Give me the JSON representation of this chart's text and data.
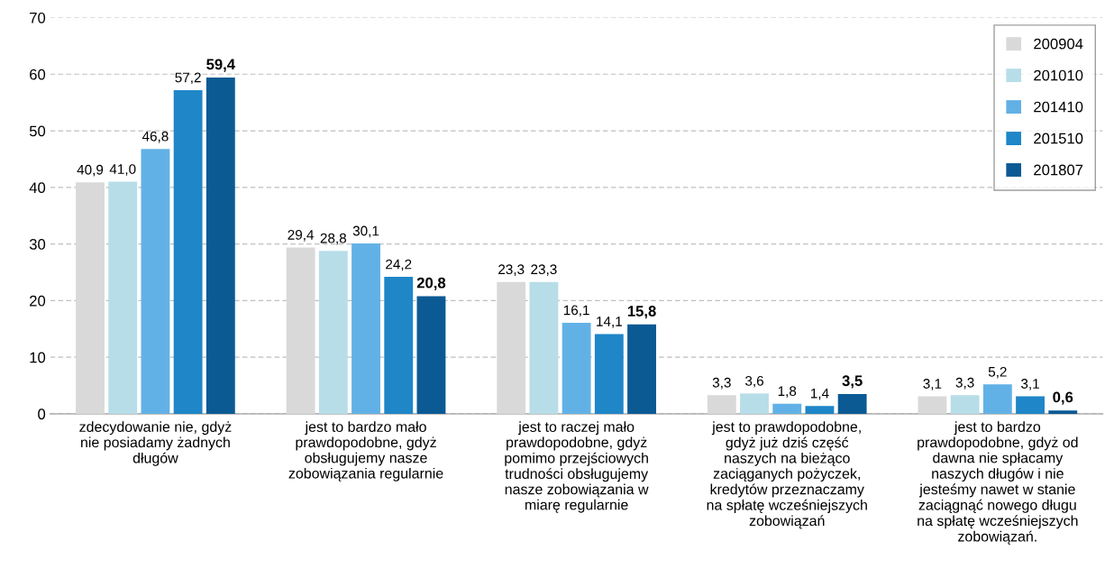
{
  "chart_data": {
    "type": "bar",
    "categories": [
      "zdecydowanie nie, gdyż\nnie posiadamy żadnych\ndługów",
      "jest to bardzo mało\nprawdopodobne, gdyż\nobsługujemy nasze\nzobowiązania regularnie",
      "jest to raczej mało\nprawdopodobne, gdyż\npomimo przejściowych\ntrudności obsługujemy\nnasze zobowiązania w\nmiarę regularnie",
      "jest to prawdopodobne,\ngdyż już dziś część\nnaszych na bieżąco\nzaciąganych pożyczek,\nkredytów przeznaczamy\nna spłatę wcześniejszych\nzobowiązań",
      "jest to bardzo\nprawdopodobne, gdyż od\ndawna nie spłacamy\nnaszych długów i nie\njesteśmy nawet w stanie\nzaciągnąć nowego długu\nna spłatę wcześniejszych\nzobowiązań."
    ],
    "series": [
      {
        "name": "200904",
        "color": "#d9d9d9",
        "values": [
          40.9,
          29.4,
          23.3,
          3.3,
          3.1
        ],
        "value_labels": [
          "40,9",
          "29,4",
          "23,3",
          "3,3",
          "3,1"
        ]
      },
      {
        "name": "201010",
        "color": "#b7dde8",
        "values": [
          41.0,
          28.8,
          23.3,
          3.6,
          3.3
        ],
        "value_labels": [
          "41,0",
          "28,8",
          "23,3",
          "3,6",
          "3,3"
        ]
      },
      {
        "name": "201410",
        "color": "#62b1e6",
        "values": [
          46.8,
          30.1,
          16.1,
          1.8,
          5.2
        ],
        "value_labels": [
          "46,8",
          "30,1",
          "16,1",
          "1,8",
          "5,2"
        ]
      },
      {
        "name": "201510",
        "color": "#1f86c8",
        "values": [
          57.2,
          24.2,
          14.1,
          1.4,
          3.1
        ],
        "value_labels": [
          "57,2",
          "24,2",
          "14,1",
          "1,4",
          "3,1"
        ]
      },
      {
        "name": "201807",
        "color": "#0b5a94",
        "values": [
          59.4,
          20.8,
          15.8,
          3.5,
          0.6
        ],
        "value_labels": [
          "59,4",
          "20,8",
          "15,8",
          "3,5",
          "0,6"
        ]
      }
    ],
    "ylim": [
      0,
      70
    ],
    "yticks": [
      0,
      10,
      20,
      30,
      40,
      50,
      60,
      70
    ],
    "grid": "y",
    "legend": "top right"
  }
}
